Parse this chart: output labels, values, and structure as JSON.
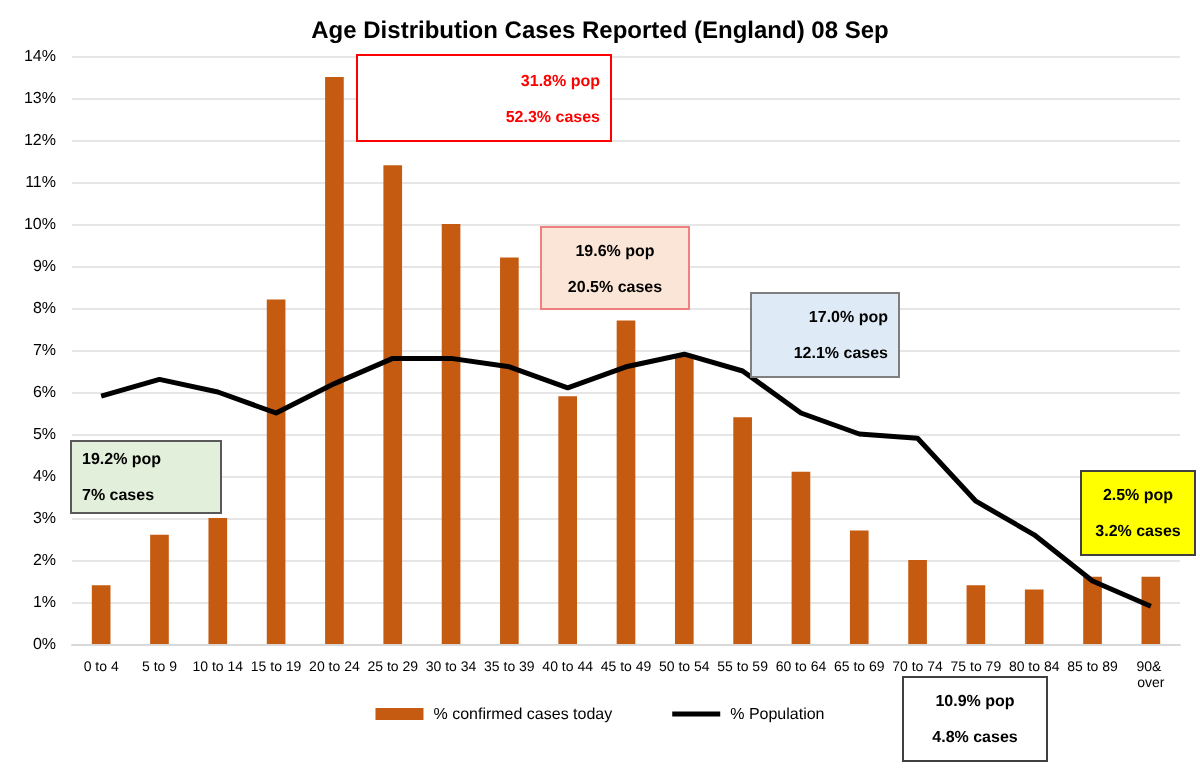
{
  "chart_data": {
    "type": "bar",
    "title": "Age Distribution Cases Reported (England) 08 Sep",
    "categories": [
      "0 to 4",
      "5 to 9",
      "10 to 14",
      "15 to 19",
      "20 to 24",
      "25 to 29",
      "30 to 34",
      "35 to 39",
      "40 to 44",
      "45 to 49",
      "50 to 54",
      "55 to 59",
      "60 to 64",
      "65 to 69",
      "70 to 74",
      "75 to 79",
      "80 to 84",
      "85 to 89",
      "90& over"
    ],
    "series": [
      {
        "name": "% confirmed cases today",
        "color": "#c55a11",
        "values": [
          1.4,
          2.6,
          3.0,
          8.2,
          13.5,
          11.4,
          10.0,
          9.2,
          5.9,
          7.7,
          6.9,
          5.4,
          4.1,
          2.7,
          2.0,
          1.4,
          1.3,
          1.6,
          1.6
        ]
      },
      {
        "name": "% Population",
        "type": "line",
        "color": "#000000",
        "values": [
          5.9,
          6.3,
          6.0,
          5.5,
          6.2,
          6.8,
          6.8,
          6.6,
          6.1,
          6.6,
          6.9,
          6.5,
          5.5,
          5.0,
          4.9,
          3.4,
          2.6,
          1.5,
          0.9
        ]
      }
    ],
    "ylim": [
      0,
      14
    ],
    "yticks": [
      {
        "value": 0,
        "label": "0%"
      },
      {
        "value": 1,
        "label": "1%"
      },
      {
        "value": 2,
        "label": "2%"
      },
      {
        "value": 3,
        "label": "3%"
      },
      {
        "value": 4,
        "label": "4%"
      },
      {
        "value": 5,
        "label": "5%"
      },
      {
        "value": 6,
        "label": "6%"
      },
      {
        "value": 7,
        "label": "7%"
      },
      {
        "value": 8,
        "label": "8%"
      },
      {
        "value": 9,
        "label": "9%"
      },
      {
        "value": 10,
        "label": "10%"
      },
      {
        "value": 11,
        "label": "11%"
      },
      {
        "value": 12,
        "label": "12%"
      },
      {
        "value": 13,
        "label": "13%"
      },
      {
        "value": 14,
        "label": "14%"
      }
    ],
    "annotations": [
      "31.8% pop\n\n52.3% cases",
      "19.6% pop\n\n20.5% cases",
      "17.0% pop\n\n12.1% cases",
      "2.5% pop\n\n3.2% cases",
      "19.2% pop\n\n7% cases",
      "10.9% pop\n\n4.8% cases"
    ],
    "grid": "y",
    "legend": "bottom",
    "marker": "none",
    "line_style": "solid"
  }
}
